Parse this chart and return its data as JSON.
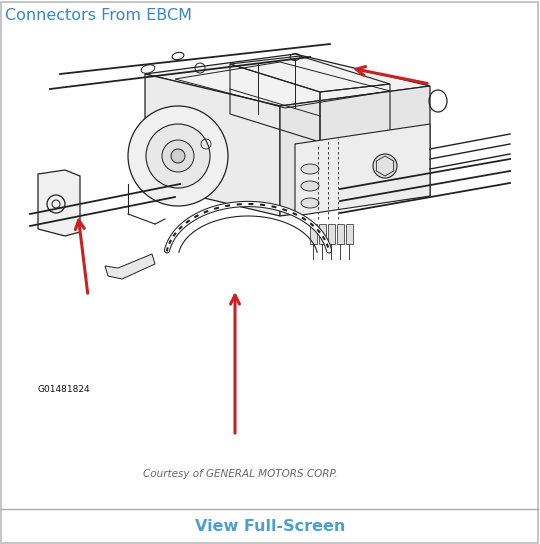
{
  "bg_color": "#ffffff",
  "panel_bg": "#ffffff",
  "border_color": "#bbbbbb",
  "title_text": "Connectors From EBCM",
  "title_color": "#3a86c8",
  "title_fontsize": 11.5,
  "footer_text": "View Full-Screen",
  "footer_color": "#4a9fd4",
  "footer_fontsize": 11.5,
  "courtesy_text": "Courtesy of GENERAL MOTORS CORP.",
  "courtesy_color": "#666666",
  "courtesy_fontsize": 7.5,
  "label_text": "G01481824",
  "label_color": "#111111",
  "label_fontsize": 6.5,
  "diagram_lc": "#222222",
  "diagram_lw": 0.9,
  "arrow_color": "#cc2020",
  "arrow_lw": 2.2,
  "arrow_mutation": 16
}
